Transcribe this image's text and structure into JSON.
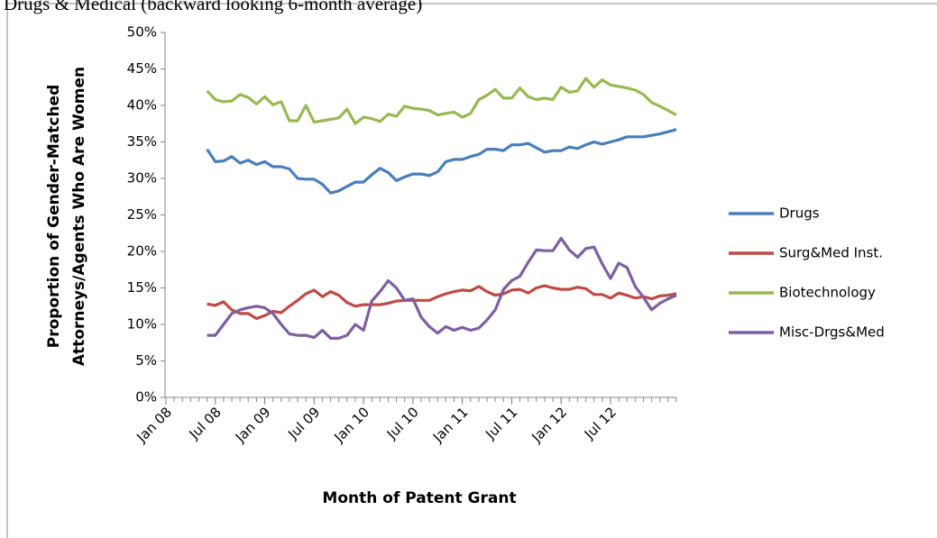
{
  "chart_data": {
    "type": "line",
    "title": "Drugs & Medical (backward looking 6-month average)",
    "x_label": "Month of Patent Grant",
    "y_label": [
      "Proportion of Gender-Matched",
      "Attorneys/Agents Who Are Women"
    ],
    "x": [
      "2008-06",
      "2008-07",
      "2008-08",
      "2008-09",
      "2008-10",
      "2008-11",
      "2008-12",
      "2009-01",
      "2009-02",
      "2009-03",
      "2009-04",
      "2009-05",
      "2009-06",
      "2009-07",
      "2009-08",
      "2009-09",
      "2009-10",
      "2009-11",
      "2009-12",
      "2010-01",
      "2010-02",
      "2010-03",
      "2010-04",
      "2010-05",
      "2010-06",
      "2010-07",
      "2010-08",
      "2010-09",
      "2010-10",
      "2010-11",
      "2010-12",
      "2011-01",
      "2011-02",
      "2011-03",
      "2011-04",
      "2011-05",
      "2011-06",
      "2011-07",
      "2011-08",
      "2011-09",
      "2011-10",
      "2011-11",
      "2011-12",
      "2012-01",
      "2012-02",
      "2012-03",
      "2012-04",
      "2012-05",
      "2012-06",
      "2012-07",
      "2012-08",
      "2012-09",
      "2012-10",
      "2012-11",
      "2012-12",
      "2013-01",
      "2013-02",
      "2013-03"
    ],
    "series": [
      {
        "name": "Drugs",
        "color": "#4a7ebb",
        "values": [
          34.0,
          32.3,
          32.4,
          33.0,
          32.1,
          32.5,
          31.9,
          32.3,
          31.6,
          31.6,
          31.3,
          30.0,
          29.9,
          29.9,
          29.2,
          28.0,
          28.3,
          28.9,
          29.5,
          29.5,
          30.5,
          31.4,
          30.8,
          29.7,
          30.2,
          30.6,
          30.6,
          30.4,
          30.9,
          32.3,
          32.6,
          32.6,
          33.0,
          33.3,
          34.0,
          34.0,
          33.8,
          34.6,
          34.6,
          34.8,
          34.2,
          33.6,
          33.8,
          33.8,
          34.3,
          34.1,
          34.6,
          35.0,
          34.7,
          35.0,
          35.3,
          35.7,
          35.7,
          35.7,
          35.9,
          36.1,
          36.4,
          36.7
        ]
      },
      {
        "name": "Surg&Med Inst.",
        "color": "#be4b48",
        "values": [
          12.8,
          12.6,
          13.1,
          12.0,
          11.5,
          11.5,
          10.8,
          11.2,
          11.8,
          11.6,
          12.5,
          13.3,
          14.2,
          14.7,
          13.8,
          14.5,
          14.0,
          13.0,
          12.5,
          12.7,
          12.7,
          12.7,
          12.9,
          13.2,
          13.3,
          13.3,
          13.3,
          13.3,
          13.8,
          14.2,
          14.5,
          14.7,
          14.6,
          15.2,
          14.5,
          14.0,
          14.2,
          14.7,
          14.8,
          14.3,
          15.0,
          15.3,
          15.0,
          14.8,
          14.8,
          15.1,
          14.9,
          14.1,
          14.1,
          13.6,
          14.3,
          14.0,
          13.6,
          13.8,
          13.5,
          13.9,
          14.0,
          14.2
        ]
      },
      {
        "name": "Biotechnology",
        "color": "#98b954",
        "values": [
          42.0,
          40.8,
          40.5,
          40.6,
          41.5,
          41.1,
          40.2,
          41.2,
          40.1,
          40.5,
          37.9,
          37.9,
          40.0,
          37.7,
          37.9,
          38.1,
          38.3,
          39.5,
          37.5,
          38.4,
          38.2,
          37.8,
          38.8,
          38.5,
          39.9,
          39.6,
          39.5,
          39.3,
          38.7,
          38.9,
          39.1,
          38.4,
          38.9,
          40.8,
          41.4,
          42.2,
          41.0,
          41.0,
          42.4,
          41.2,
          40.8,
          41.0,
          40.8,
          42.5,
          41.8,
          42.0,
          43.7,
          42.5,
          43.5,
          42.8,
          42.6,
          42.4,
          42.1,
          41.5,
          40.4,
          39.9,
          39.3,
          38.7
        ]
      },
      {
        "name": "Misc-Drgs&Med",
        "color": "#7d60a0",
        "values": [
          8.5,
          8.5,
          10.0,
          11.5,
          12.0,
          12.3,
          12.5,
          12.3,
          11.5,
          10.0,
          8.7,
          8.5,
          8.5,
          8.2,
          9.2,
          8.1,
          8.1,
          8.5,
          10.0,
          9.2,
          13.2,
          14.5,
          16.0,
          15.0,
          13.3,
          13.5,
          11.0,
          9.7,
          8.8,
          9.7,
          9.2,
          9.6,
          9.2,
          9.5,
          10.6,
          12.0,
          14.8,
          16.0,
          16.6,
          18.5,
          20.2,
          20.1,
          20.1,
          21.8,
          20.2,
          19.2,
          20.4,
          20.6,
          18.3,
          16.3,
          18.4,
          17.8,
          15.2,
          13.7,
          12.0,
          12.9,
          13.5,
          14.0
        ]
      }
    ],
    "xlim": [
      "2008-01",
      "2013-03"
    ],
    "xticks": [
      {
        "value": "2008-01",
        "label": "Jan 08"
      },
      {
        "value": "2008-07",
        "label": "Jul 08"
      },
      {
        "value": "2009-01",
        "label": "Jan 09"
      },
      {
        "value": "2009-07",
        "label": "Jul 09"
      },
      {
        "value": "2010-01",
        "label": "Jan 10"
      },
      {
        "value": "2010-07",
        "label": "Jul 10"
      },
      {
        "value": "2011-01",
        "label": "Jan 11"
      },
      {
        "value": "2011-07",
        "label": "Jul 11"
      },
      {
        "value": "2012-01",
        "label": "Jan 12"
      },
      {
        "value": "2012-07",
        "label": "Jul 12"
      }
    ],
    "ylim": [
      0,
      50
    ],
    "yticks": [
      {
        "value": 0,
        "label": "0%"
      },
      {
        "value": 5,
        "label": "5%"
      },
      {
        "value": 10,
        "label": "10%"
      },
      {
        "value": 15,
        "label": "15%"
      },
      {
        "value": 20,
        "label": "20%"
      },
      {
        "value": 25,
        "label": "25%"
      },
      {
        "value": 30,
        "label": "30%"
      },
      {
        "value": 35,
        "label": "35%"
      },
      {
        "value": 40,
        "label": "40%"
      },
      {
        "value": 45,
        "label": "45%"
      },
      {
        "value": 50,
        "label": "50%"
      }
    ],
    "grid": false,
    "legend": "right"
  }
}
